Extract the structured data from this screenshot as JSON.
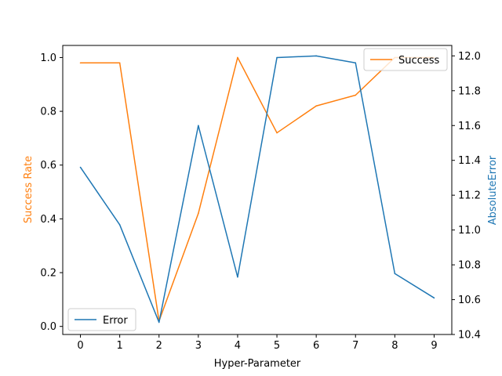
{
  "chart_data": {
    "type": "line",
    "title": "",
    "xlabel": "Hyper-Parameter",
    "ylabel_left": "Success Rate",
    "ylabel_right": "AbsoluteError",
    "x": [
      0,
      1,
      2,
      3,
      4,
      5,
      6,
      7,
      8,
      9
    ],
    "x_ticks": [
      "0",
      "1",
      "2",
      "3",
      "4",
      "5",
      "6",
      "7",
      "8",
      "9"
    ],
    "xlim": [
      -0.45,
      9.45
    ],
    "ylim_left": [
      -0.03,
      1.045
    ],
    "ylim_right": [
      10.4,
      12.06
    ],
    "y_ticks_left": [
      "0.0",
      "0.2",
      "0.4",
      "0.6",
      "0.8",
      "1.0"
    ],
    "y_ticks_right": [
      "10.4",
      "10.6",
      "10.8",
      "11.0",
      "11.2",
      "11.4",
      "11.6",
      "11.8",
      "12.0"
    ],
    "grid": false,
    "series": [
      {
        "name": "Success",
        "axis": "left",
        "color": "#ff7f0e",
        "values": [
          0.98,
          0.98,
          0.02,
          0.42,
          1.0,
          0.72,
          0.82,
          0.86,
          1.0,
          1.0
        ],
        "legend": "top-right"
      },
      {
        "name": "Error",
        "axis": "right",
        "color": "#1f77b4",
        "values": [
          11.36,
          11.03,
          10.47,
          11.6,
          10.73,
          11.99,
          12.0,
          11.96,
          10.75,
          10.61
        ],
        "legend": "bottom-left"
      }
    ],
    "colors": {
      "left_axis_label": "#ff7f0e",
      "right_axis_label": "#1f77b4"
    }
  }
}
